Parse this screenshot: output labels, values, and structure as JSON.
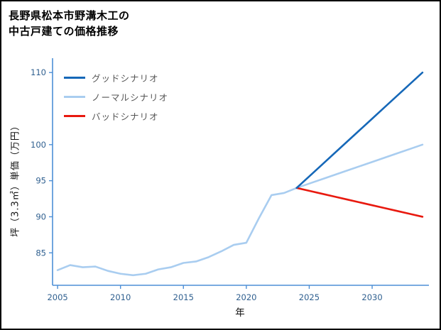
{
  "title": {
    "line1": "長野県松本市野溝木工の",
    "line2": "中古戸建ての価格推移"
  },
  "chart_data": {
    "type": "line",
    "title": "長野県松本市野溝木工の中古戸建ての価格推移",
    "xlabel": "年",
    "ylabel": "坪（3.3㎡）単価（万円）",
    "xlim": [
      2004.6,
      2034.4
    ],
    "ylim": [
      80.5,
      111.2
    ],
    "x_ticks": [
      2005,
      2010,
      2015,
      2020,
      2025,
      2030
    ],
    "y_ticks": [
      85,
      90,
      95,
      100,
      110
    ],
    "grid": false,
    "legend_position": "upper left",
    "axis_color": "#4d8fd6",
    "tick_text_color": "#2f5f8f",
    "legend_text_color": "#555555",
    "series": [
      {
        "name": "グッドシナリオ",
        "color": "#1668b8",
        "x": [
          2024,
          2025,
          2026,
          2027,
          2028,
          2029,
          2030,
          2031,
          2032,
          2033,
          2034
        ],
        "values": [
          94,
          95.6,
          97.2,
          98.8,
          100.4,
          102,
          103.6,
          105.2,
          106.8,
          108.4,
          110
        ]
      },
      {
        "name": "ノーマルシナリオ",
        "color": "#a9cdf0",
        "x": [
          2005,
          2006,
          2007,
          2008,
          2009,
          2010,
          2011,
          2012,
          2013,
          2014,
          2015,
          2016,
          2017,
          2018,
          2019,
          2020,
          2021,
          2022,
          2023,
          2024,
          2025,
          2026,
          2027,
          2028,
          2029,
          2030,
          2031,
          2032,
          2033,
          2034
        ],
        "values": [
          82.6,
          83.3,
          83.0,
          83.1,
          82.5,
          82.1,
          81.9,
          82.1,
          82.7,
          83.0,
          83.6,
          83.8,
          84.4,
          85.2,
          86.1,
          86.4,
          89.8,
          93.0,
          93.3,
          94.0,
          94.6,
          95.2,
          95.8,
          96.4,
          97.0,
          97.6,
          98.2,
          98.8,
          99.4,
          100.0
        ]
      },
      {
        "name": "バッドシナリオ",
        "color": "#e8190f",
        "x": [
          2024,
          2025,
          2026,
          2027,
          2028,
          2029,
          2030,
          2031,
          2032,
          2033,
          2034
        ],
        "values": [
          94,
          93.6,
          93.2,
          92.8,
          92.4,
          92,
          91.6,
          91.2,
          90.8,
          90.4,
          90
        ]
      }
    ]
  }
}
